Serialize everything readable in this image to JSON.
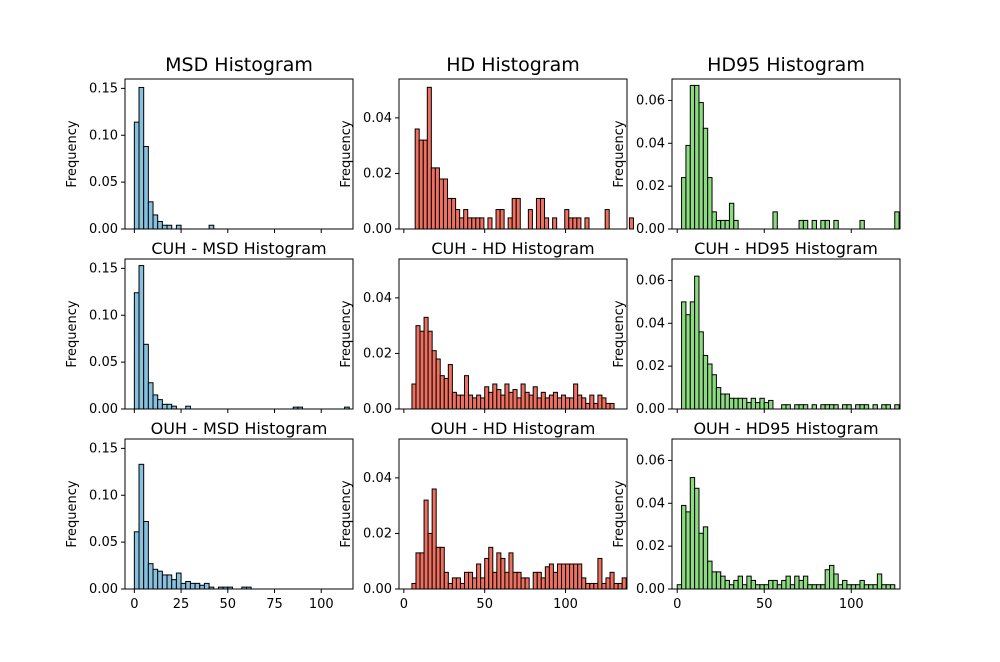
{
  "figure": {
    "background": "#ffffff",
    "ylabel": "Frequency"
  },
  "colors": {
    "MSD": "#87c1e0",
    "HD": "#f07060",
    "HD95": "#8cdb80",
    "edge": "#000000"
  },
  "chart_data": [
    {
      "id": "msd-all",
      "type": "bar",
      "title": "MSD Histogram",
      "title_size": "large",
      "color_key": "MSD",
      "ylabel": "Frequency",
      "xlim": [
        -5,
        117
      ],
      "ylim": [
        0,
        0.16
      ],
      "yticks": [
        0,
        0.05,
        0.1,
        0.15
      ],
      "ytick_labels": [
        "0.00",
        "0.05",
        "0.10",
        "0.15"
      ],
      "xticks": [
        0,
        25,
        50,
        75,
        100
      ],
      "xtick_labels": [],
      "bin_start": 0,
      "bin_width": 2.5,
      "values": [
        0.114,
        0.151,
        0.088,
        0.029,
        0.015,
        0.008,
        0.004,
        0.004,
        0,
        0.004,
        0,
        0,
        0,
        0,
        0,
        0,
        0.004
      ]
    },
    {
      "id": "hd-all",
      "type": "bar",
      "title": "HD Histogram",
      "title_size": "large",
      "color_key": "HD",
      "ylabel": "Frequency",
      "xlim": [
        -3,
        138
      ],
      "ylim": [
        0,
        0.054
      ],
      "yticks": [
        0,
        0.02,
        0.04
      ],
      "ytick_labels": [
        "0.00",
        "0.02",
        "0.04"
      ],
      "xticks": [
        0,
        50,
        100
      ],
      "xtick_labels": [],
      "bin_start": 7,
      "bin_width": 2.5,
      "values": [
        0.036,
        0.032,
        0.032,
        0.051,
        0.022,
        0.022,
        0.018,
        0.018,
        0.011,
        0.011,
        0.007,
        0.004,
        0.007,
        0.004,
        0.004,
        0.004,
        0.004,
        0,
        0.004,
        0,
        0.007,
        0.007,
        0,
        0.004,
        0.011,
        0.011,
        0,
        0,
        0.007,
        0,
        0.011,
        0.011,
        0.004,
        0,
        0.004,
        0,
        0,
        0.007,
        0.004,
        0.004,
        0.004,
        0,
        0.004,
        0,
        0,
        0,
        0,
        0.007,
        0,
        0,
        0,
        0,
        0,
        0.004
      ]
    },
    {
      "id": "hd95-all",
      "type": "bar",
      "title": "HD95 Histogram",
      "title_size": "large",
      "color_key": "HD95",
      "ylabel": "Frequency",
      "xlim": [
        -3,
        128
      ],
      "ylim": [
        0,
        0.07
      ],
      "yticks": [
        0,
        0.02,
        0.04,
        0.06
      ],
      "ytick_labels": [
        "0.00",
        "0.02",
        "0.04",
        "0.06"
      ],
      "xticks": [
        0,
        50,
        100
      ],
      "xtick_labels": [],
      "bin_start": 2.5,
      "bin_width": 2.5,
      "values": [
        0.024,
        0.039,
        0.067,
        0.067,
        0.059,
        0.047,
        0.024,
        0.008,
        0.004,
        0.004,
        0.004,
        0.012,
        0.004,
        0,
        0,
        0,
        0,
        0,
        0,
        0,
        0,
        0.008,
        0,
        0,
        0,
        0,
        0,
        0.004,
        0.004,
        0,
        0.004,
        0,
        0.004,
        0.004,
        0,
        0.004,
        0,
        0,
        0,
        0,
        0,
        0.004,
        0,
        0,
        0,
        0,
        0,
        0,
        0,
        0.008
      ]
    },
    {
      "id": "msd-cuh",
      "type": "bar",
      "title": "CUH - MSD Histogram",
      "title_size": "medium",
      "color_key": "MSD",
      "ylabel": "Frequency",
      "xlim": [
        -5,
        117
      ],
      "ylim": [
        0,
        0.16
      ],
      "yticks": [
        0,
        0.05,
        0.1,
        0.15
      ],
      "ytick_labels": [
        "0.00",
        "0.05",
        "0.10",
        "0.15"
      ],
      "xticks": [
        0,
        25,
        50,
        75,
        100
      ],
      "xtick_labels": [],
      "bin_start": 0,
      "bin_width": 2.5,
      "values": [
        0.124,
        0.153,
        0.069,
        0.028,
        0.015,
        0.01,
        0.005,
        0.005,
        0.003,
        0,
        0,
        0.003,
        0,
        0,
        0,
        0,
        0,
        0,
        0,
        0,
        0,
        0,
        0,
        0,
        0,
        0,
        0,
        0,
        0,
        0,
        0,
        0,
        0,
        0,
        0.002,
        0.002,
        0,
        0,
        0,
        0,
        0,
        0,
        0,
        0,
        0,
        0.002
      ]
    },
    {
      "id": "hd-cuh",
      "type": "bar",
      "title": "CUH - HD Histogram",
      "title_size": "medium",
      "color_key": "HD",
      "ylabel": "Frequency",
      "xlim": [
        -3,
        138
      ],
      "ylim": [
        0,
        0.054
      ],
      "yticks": [
        0,
        0.02,
        0.04
      ],
      "ytick_labels": [
        "0.00",
        "0.02",
        "0.04"
      ],
      "xticks": [
        0,
        50,
        100
      ],
      "xtick_labels": [],
      "bin_start": 5,
      "bin_width": 2.5,
      "values": [
        0.009,
        0.03,
        0.028,
        0.033,
        0.028,
        0.021,
        0.018,
        0.012,
        0.011,
        0.016,
        0.006,
        0.005,
        0.005,
        0.012,
        0.005,
        0.004,
        0.005,
        0.004,
        0.008,
        0.006,
        0.009,
        0.007,
        0.005,
        0.009,
        0.006,
        0.007,
        0.004,
        0.009,
        0.006,
        0.005,
        0.008,
        0.004,
        0.006,
        0.004,
        0.005,
        0.006,
        0.004,
        0.005,
        0.004,
        0.004,
        0.009,
        0.005,
        0.004,
        0.002,
        0.005,
        0.002,
        0.005,
        0.004,
        0.002,
        0.002
      ]
    },
    {
      "id": "hd95-cuh",
      "type": "bar",
      "title": "CUH - HD95 Histogram",
      "title_size": "medium",
      "color_key": "HD95",
      "ylabel": "Frequency",
      "xlim": [
        -3,
        128
      ],
      "ylim": [
        0,
        0.07
      ],
      "yticks": [
        0,
        0.02,
        0.04,
        0.06
      ],
      "ytick_labels": [
        "0.00",
        "0.02",
        "0.04",
        "0.06"
      ],
      "xticks": [
        0,
        50,
        100
      ],
      "xtick_labels": [],
      "bin_start": 2.5,
      "bin_width": 2.5,
      "values": [
        0.05,
        0.044,
        0.05,
        0.062,
        0.036,
        0.025,
        0.021,
        0.016,
        0.01,
        0.007,
        0.007,
        0.005,
        0.005,
        0.005,
        0.005,
        0.003,
        0.005,
        0.003,
        0.005,
        0.003,
        0.004,
        0,
        0,
        0.002,
        0.002,
        0,
        0.002,
        0.002,
        0.002,
        0,
        0.002,
        0,
        0.002,
        0.002,
        0.002,
        0.002,
        0,
        0.002,
        0.002,
        0,
        0.002,
        0.002,
        0.002,
        0,
        0.002,
        0,
        0.002,
        0.002,
        0,
        0.002
      ]
    },
    {
      "id": "msd-ouh",
      "type": "bar",
      "title": "OUH - MSD Histogram",
      "title_size": "medium",
      "color_key": "MSD",
      "ylabel": "Frequency",
      "xlim": [
        -5,
        117
      ],
      "ylim": [
        0,
        0.16
      ],
      "yticks": [
        0,
        0.05,
        0.1,
        0.15
      ],
      "ytick_labels": [
        "0.00",
        "0.05",
        "0.10",
        "0.15"
      ],
      "xticks": [
        0,
        25,
        50,
        75,
        100
      ],
      "xtick_labels": [
        "0",
        "25",
        "50",
        "75",
        "100"
      ],
      "bin_start": 0,
      "bin_width": 2.5,
      "values": [
        0.061,
        0.133,
        0.072,
        0.027,
        0.021,
        0.019,
        0.015,
        0.015,
        0.01,
        0.017,
        0.006,
        0.008,
        0.006,
        0.006,
        0.004,
        0.006,
        0.002,
        0,
        0.002,
        0.002,
        0.002,
        0,
        0,
        0.002,
        0.002
      ]
    },
    {
      "id": "hd-ouh",
      "type": "bar",
      "title": "OUH - HD Histogram",
      "title_size": "medium",
      "color_key": "HD",
      "ylabel": "Frequency",
      "xlim": [
        -3,
        138
      ],
      "ylim": [
        0,
        0.054
      ],
      "yticks": [
        0,
        0.02,
        0.04
      ],
      "ytick_labels": [
        "0.00",
        "0.02",
        "0.04"
      ],
      "xticks": [
        0,
        50,
        100
      ],
      "xtick_labels": [
        "0",
        "50",
        "100"
      ],
      "bin_start": 5,
      "bin_width": 2.5,
      "values": [
        0.002,
        0.013,
        0.013,
        0.032,
        0.02,
        0.036,
        0.015,
        0.015,
        0.006,
        0.002,
        0.004,
        0.004,
        0.002,
        0.006,
        0.006,
        0.004,
        0.009,
        0.004,
        0.011,
        0.015,
        0.006,
        0.013,
        0.011,
        0.006,
        0.013,
        0.006,
        0.006,
        0.004,
        0.004,
        0,
        0.006,
        0.006,
        0.004,
        0.008,
        0.009,
        0.006,
        0.009,
        0.009,
        0.009,
        0.009,
        0.009,
        0.009,
        0.004,
        0.002,
        0.002,
        0.002,
        0.011,
        0.002,
        0.004,
        0.006,
        0.002,
        0.002,
        0.004
      ]
    },
    {
      "id": "hd95-ouh",
      "type": "bar",
      "title": "OUH - HD95 Histogram",
      "title_size": "medium",
      "color_key": "HD95",
      "ylabel": "Frequency",
      "xlim": [
        -3,
        128
      ],
      "ylim": [
        0,
        0.07
      ],
      "yticks": [
        0,
        0.02,
        0.04,
        0.06
      ],
      "ytick_labels": [
        "0.00",
        "0.02",
        "0.04",
        "0.06"
      ],
      "xticks": [
        0,
        50,
        100
      ],
      "xtick_labels": [
        "0",
        "50",
        "100"
      ],
      "bin_start": 0,
      "bin_width": 2.5,
      "values": [
        0.002,
        0.039,
        0.036,
        0.052,
        0.047,
        0.026,
        0.029,
        0.013,
        0.008,
        0.008,
        0.006,
        0.004,
        0.002,
        0.004,
        0.006,
        0.002,
        0.006,
        0.004,
        0.002,
        0.002,
        0.002,
        0.004,
        0.004,
        0.002,
        0.004,
        0.006,
        0.002,
        0.006,
        0.004,
        0.006,
        0.002,
        0.002,
        0.002,
        0.002,
        0.009,
        0.011,
        0.007,
        0.002,
        0.004,
        0.002,
        0.002,
        0.002,
        0.004,
        0.002,
        0.002,
        0.002,
        0.007,
        0.002,
        0.002,
        0.002
      ]
    }
  ]
}
